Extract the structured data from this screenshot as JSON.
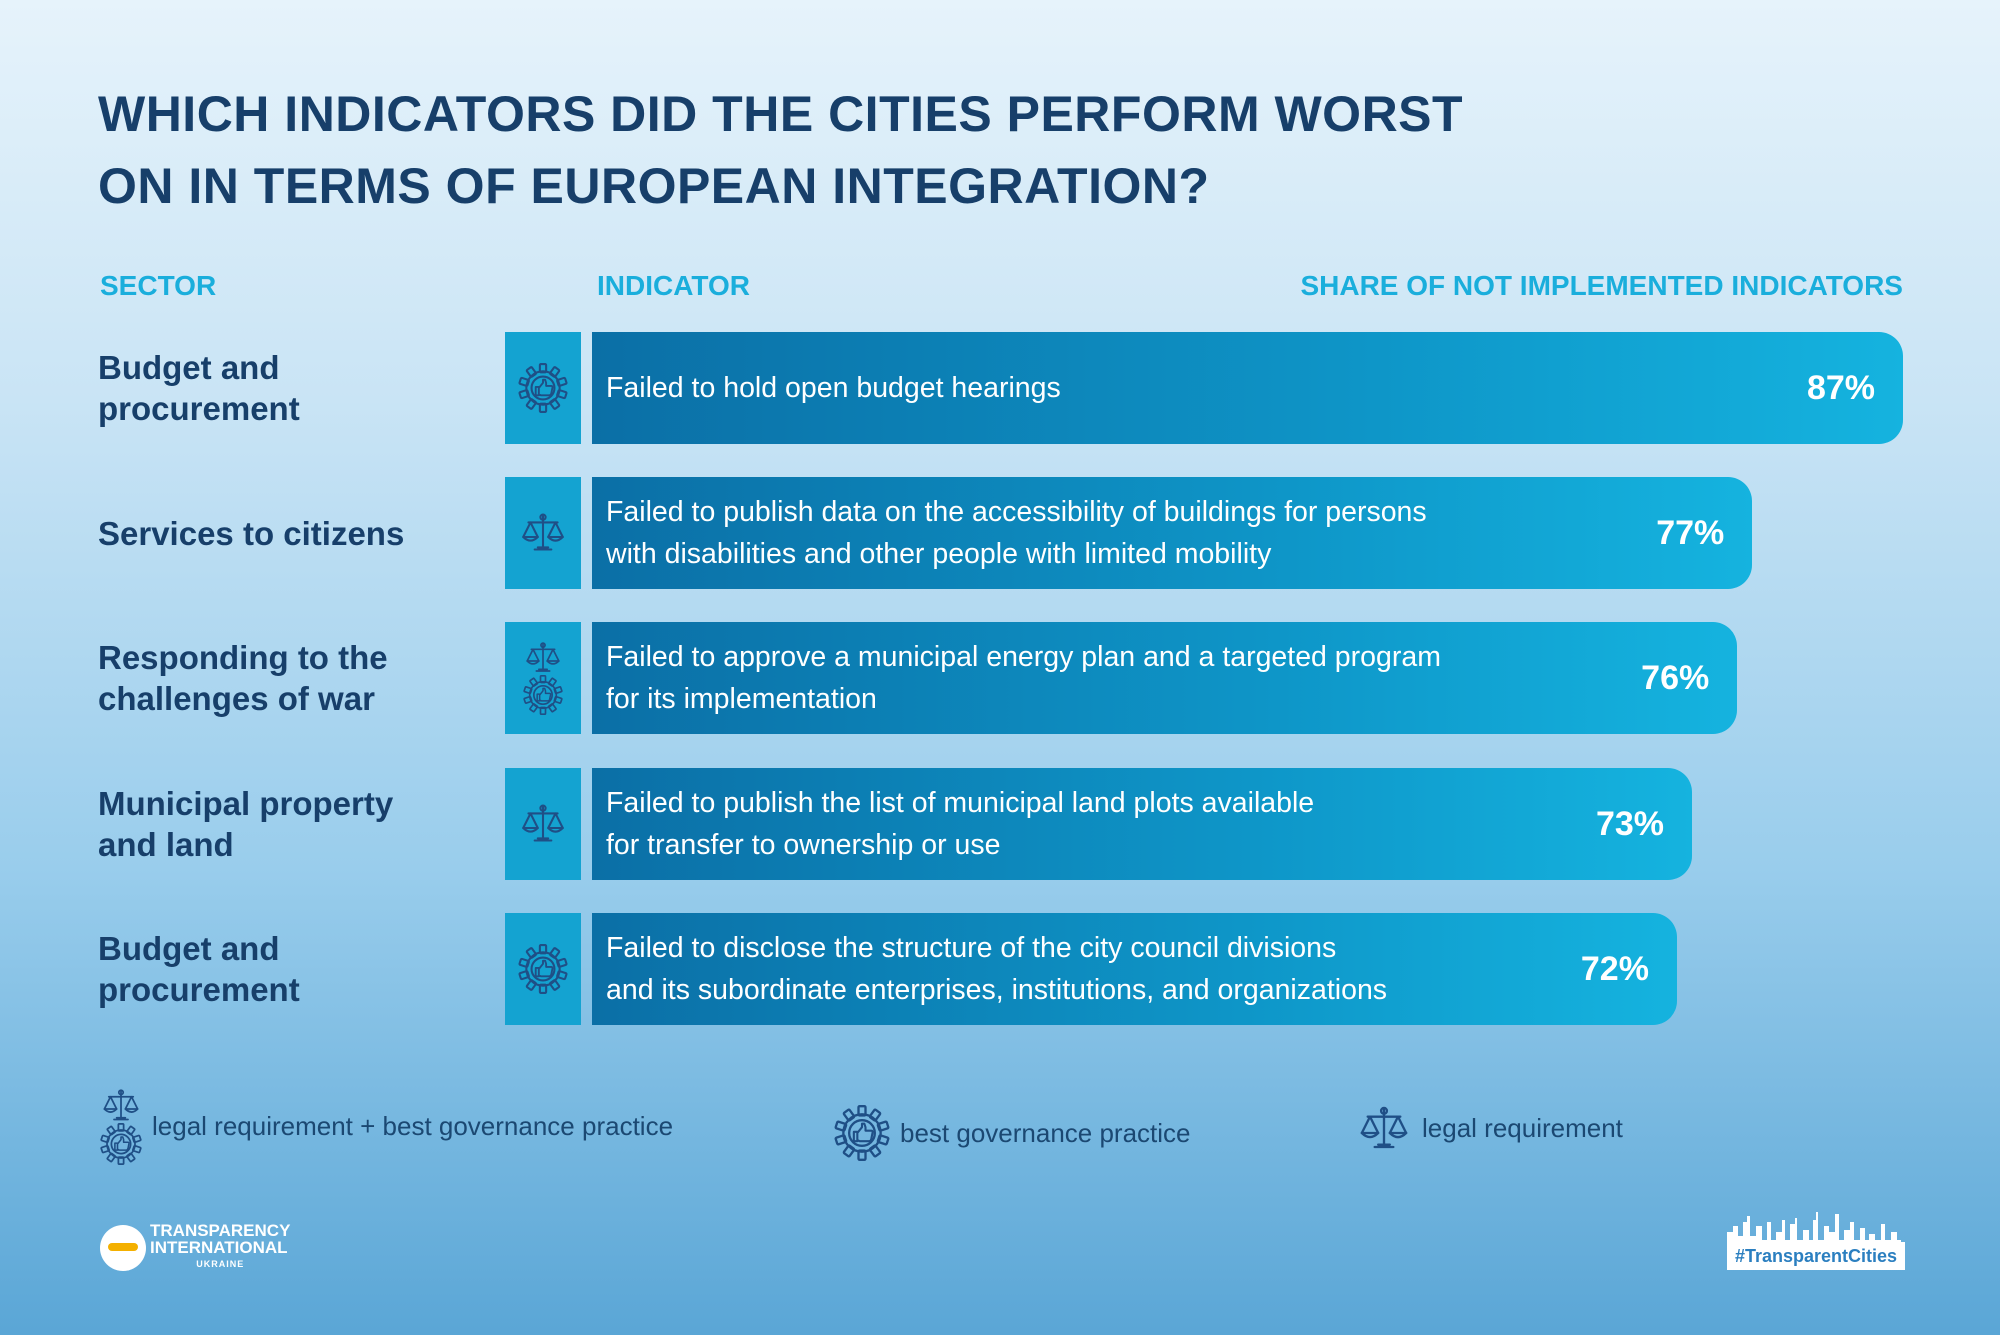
{
  "title_lines": [
    "WHICH INDICATORS DID THE CITIES PERFORM WORST",
    "ON IN TERMS OF EUROPEAN INTEGRATION?"
  ],
  "columns": {
    "sector": "SECTOR",
    "indicator": "INDICATOR",
    "share": "SHARE OF NOT IMPLEMENTED INDICATORS"
  },
  "chart_data": {
    "type": "bar",
    "orientation": "horizontal",
    "categories": [
      "Failed to hold open budget hearings",
      "Failed to publish data on the accessibility of buildings for persons with disabilities and other people with limited mobility",
      "Failed to approve a municipal energy plan and a targeted program for its implementation",
      "Failed to publish the list of municipal land plots available for transfer to ownership or use",
      "Failed to disclose the structure of the city council divisions and its subordinate enterprises, institutions, and organizations"
    ],
    "values": [
      87,
      77,
      76,
      73,
      72
    ],
    "value_labels": [
      "87%",
      "77%",
      "76%",
      "73%",
      "72%"
    ],
    "sectors": [
      "Budget and procurement",
      "Services to citizens",
      "Responding to the challenges of war",
      "Municipal property and land",
      "Budget and procurement"
    ],
    "indicator_types": [
      "best governance practice",
      "legal requirement",
      "legal requirement + best governance practice",
      "legal requirement",
      "best governance practice"
    ],
    "unit": "%",
    "xlim": [
      0,
      100
    ],
    "colors": {
      "bar_dark": "#0b6fa6",
      "bar_light": "#15b3df",
      "icon_box": "#14a3d1",
      "text_dark": "#173f6a",
      "header": "#1aaedc"
    }
  },
  "rows": [
    {
      "sector_lines": [
        "Budget and",
        "procurement"
      ],
      "indicator_lines": [
        "Failed to hold open budget hearings"
      ],
      "value_label": "87%",
      "icons": [
        "gear-thumb-icon"
      ]
    },
    {
      "sector_lines": [
        "Services to citizens"
      ],
      "indicator_lines": [
        "Failed to publish data on the accessibility of buildings for persons",
        "with disabilities and other people with limited mobility"
      ],
      "value_label": "77%",
      "icons": [
        "scales-icon"
      ]
    },
    {
      "sector_lines": [
        "Responding to the",
        "challenges of war"
      ],
      "indicator_lines": [
        "Failed to approve a municipal energy plan and a targeted program",
        "for its implementation"
      ],
      "value_label": "76%",
      "icons": [
        "scales-icon",
        "gear-thumb-icon"
      ]
    },
    {
      "sector_lines": [
        "Municipal property",
        "and land"
      ],
      "indicator_lines": [
        "Failed to publish the list of municipal land plots available",
        "for transfer to ownership or use"
      ],
      "value_label": "73%",
      "icons": [
        "scales-icon"
      ]
    },
    {
      "sector_lines": [
        "Budget and",
        "procurement"
      ],
      "indicator_lines": [
        "Failed to disclose the structure of the city council divisions",
        "and its subordinate enterprises, institutions, and organizations"
      ],
      "value_label": "72%",
      "icons": [
        "gear-thumb-icon"
      ]
    }
  ],
  "legend": [
    {
      "label": "legal requirement + best governance practice",
      "icons": [
        "scales-icon",
        "gear-thumb-icon"
      ]
    },
    {
      "label": "best governance practice",
      "icons": [
        "gear-thumb-icon"
      ]
    },
    {
      "label": "legal requirement",
      "icons": [
        "scales-icon"
      ]
    }
  ],
  "footer": {
    "logo_lines": [
      "TRANSPARENCY",
      "INTERNATIONAL",
      "UKRAINE"
    ],
    "hashtag": "#TransparentCities"
  }
}
